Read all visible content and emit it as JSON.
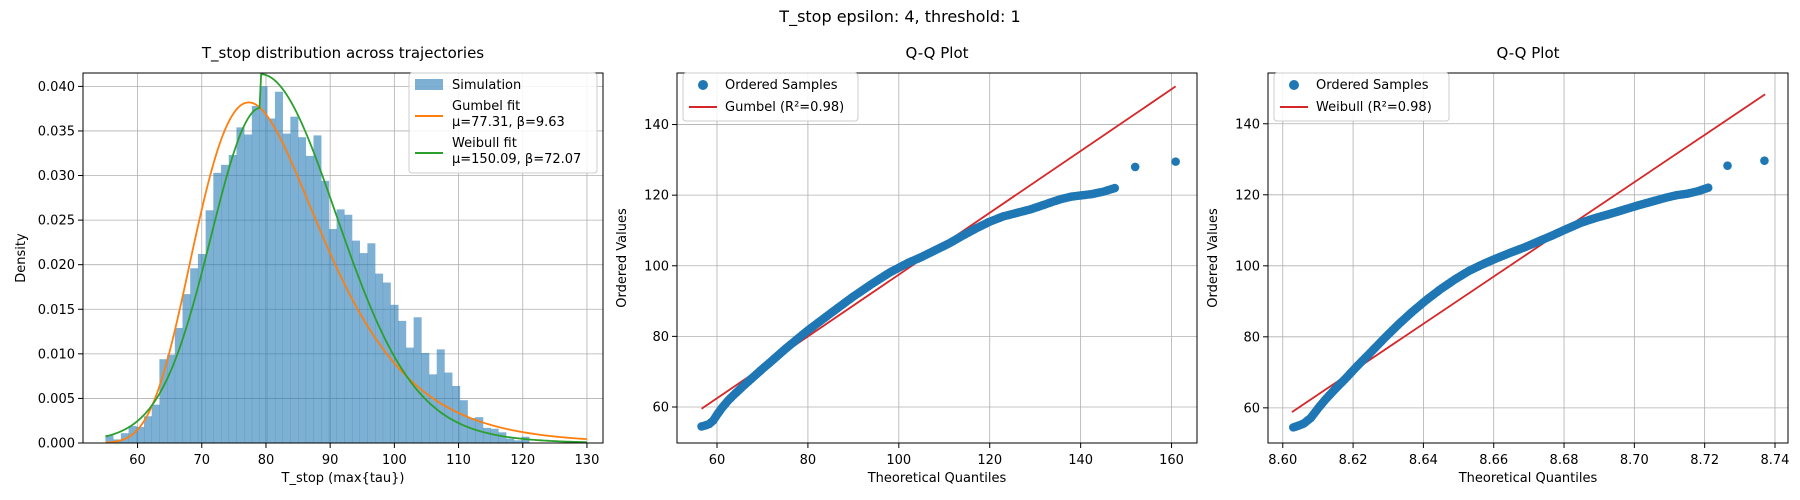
{
  "figure": {
    "suptitle": "T_stop epsilon: 4, threshold: 1",
    "colors": {
      "hist": "#1f77b4",
      "gumbel": "#ff7f0e",
      "weibull": "#2ca02c",
      "points": "#1f77b4",
      "fitline": "#d62728",
      "grid": "#b0b0b0"
    }
  },
  "chart_data": [
    {
      "type": "bar",
      "title": "T_stop distribution across trajectories",
      "xlabel": "T_stop (max{tau})",
      "ylabel": "Density",
      "xlim": [
        51.5,
        132.5
      ],
      "ylim": [
        0,
        0.0415
      ],
      "xticks": [
        60,
        70,
        80,
        90,
        100,
        110,
        120,
        130
      ],
      "yticks": [
        0.0,
        0.005,
        0.01,
        0.015,
        0.02,
        0.025,
        0.03,
        0.035,
        0.04
      ],
      "ytick_labels": [
        "0.000",
        "0.005",
        "0.010",
        "0.015",
        "0.020",
        "0.025",
        "0.030",
        "0.035",
        "0.040"
      ],
      "grid": true,
      "legend_position": "top-right",
      "histogram": {
        "name": "Simulation",
        "bin_start": 55,
        "bin_width": 1.2,
        "densities": [
          0.0009,
          0.0004,
          0.0011,
          0.0019,
          0.0018,
          0.003,
          0.0043,
          0.0094,
          0.0099,
          0.0129,
          0.0167,
          0.0196,
          0.0212,
          0.0261,
          0.0303,
          0.0312,
          0.0323,
          0.0354,
          0.0346,
          0.0378,
          0.04,
          0.0364,
          0.0394,
          0.0347,
          0.0366,
          0.0343,
          0.0322,
          0.0345,
          0.0294,
          0.024,
          0.0262,
          0.0256,
          0.0227,
          0.0213,
          0.0224,
          0.019,
          0.018,
          0.0155,
          0.0137,
          0.0107,
          0.0141,
          0.0101,
          0.0077,
          0.0105,
          0.0079,
          0.0064,
          0.0048,
          0.0028,
          0.0029,
          0.0017,
          0.0016,
          0.0012,
          0.0005,
          0.0003,
          0.0007
        ]
      },
      "series": [
        {
          "name": "Gumbel fit",
          "params_label": "μ=77.31, β=9.63",
          "model": "gumbel",
          "mu": 77.31,
          "beta": 9.63,
          "x_range": [
            55,
            130
          ]
        },
        {
          "name": "Weibull fit",
          "params_label": "μ=150.09, β=72.07",
          "model": "skewed",
          "peak": 79.2,
          "peak_density": 0.0376,
          "x_range": [
            55,
            130
          ]
        }
      ]
    },
    {
      "type": "scatter",
      "title": "Q-Q Plot",
      "xlabel": "Theoretical Quantiles",
      "ylabel": "Ordered Values",
      "xlim": [
        51.2,
        165.6
      ],
      "ylim": [
        49.8,
        154.6
      ],
      "xticks": [
        60,
        80,
        100,
        120,
        140,
        160
      ],
      "yticks": [
        60,
        80,
        100,
        120,
        140
      ],
      "grid": true,
      "legend_position": "top-left",
      "series": [
        {
          "name": "Ordered Samples",
          "points": [
            [
              56.6,
              54.5
            ],
            [
              57.5,
              54.8
            ],
            [
              58.3,
              55.2
            ],
            [
              59.2,
              56.2
            ],
            [
              60.0,
              57.8
            ],
            [
              61.0,
              59.6
            ],
            [
              62.5,
              61.9
            ],
            [
              64.0,
              63.8
            ],
            [
              66.0,
              66.2
            ],
            [
              68.0,
              68.5
            ],
            [
              70.0,
              70.8
            ],
            [
              72.0,
              73.0
            ],
            [
              75.0,
              76.4
            ],
            [
              78.0,
              79.6
            ],
            [
              80.0,
              81.7
            ],
            [
              83.0,
              84.6
            ],
            [
              86.0,
              87.5
            ],
            [
              90.0,
              91.3
            ],
            [
              94.0,
              94.8
            ],
            [
              98.0,
              98.1
            ],
            [
              102.0,
              100.8
            ],
            [
              105.0,
              102.5
            ],
            [
              108.0,
              104.4
            ],
            [
              111.0,
              106.3
            ],
            [
              114.0,
              108.5
            ],
            [
              117.0,
              110.6
            ],
            [
              120.0,
              112.5
            ],
            [
              123.0,
              114.0
            ],
            [
              126.0,
              115.0
            ],
            [
              129.0,
              116.0
            ],
            [
              132.0,
              117.3
            ],
            [
              134.0,
              118.2
            ],
            [
              136.0,
              119.0
            ],
            [
              138.0,
              119.6
            ],
            [
              140.5,
              120.0
            ],
            [
              142.5,
              120.3
            ],
            [
              145.0,
              121.0
            ],
            [
              147.5,
              122.0
            ],
            [
              152.0,
              128.0
            ],
            [
              160.9,
              129.5
            ]
          ]
        },
        {
          "name": "Gumbel (R²=0.98)",
          "model": "line",
          "x": [
            56.6,
            160.9
          ],
          "y": [
            59.5,
            150.8
          ]
        }
      ]
    },
    {
      "type": "scatter",
      "title": "Q-Q Plot",
      "xlabel": "Theoretical Quantiles",
      "ylabel": "Ordered Values",
      "xlim": [
        8.5958,
        8.7437
      ],
      "ylim": [
        50.1,
        154.3
      ],
      "xticks": [
        8.6,
        8.62,
        8.64,
        8.66,
        8.68,
        8.7,
        8.72,
        8.74
      ],
      "xtick_labels": [
        "8.60",
        "8.62",
        "8.64",
        "8.66",
        "8.68",
        "8.70",
        "8.72",
        "8.74"
      ],
      "yticks": [
        60,
        80,
        100,
        120,
        140
      ],
      "grid": true,
      "legend_position": "top-left",
      "series": [
        {
          "name": "Ordered Samples",
          "points": [
            [
              8.603,
              54.5
            ],
            [
              8.6045,
              55.0
            ],
            [
              8.606,
              55.6
            ],
            [
              8.608,
              57.2
            ],
            [
              8.61,
              59.8
            ],
            [
              8.612,
              62.2
            ],
            [
              8.615,
              65.4
            ],
            [
              8.618,
              68.4
            ],
            [
              8.621,
              71.6
            ],
            [
              8.625,
              75.6
            ],
            [
              8.629,
              79.7
            ],
            [
              8.633,
              83.6
            ],
            [
              8.637,
              87.2
            ],
            [
              8.641,
              90.5
            ],
            [
              8.645,
              93.5
            ],
            [
              8.649,
              96.2
            ],
            [
              8.653,
              98.6
            ],
            [
              8.657,
              100.5
            ],
            [
              8.661,
              102.2
            ],
            [
              8.665,
              103.8
            ],
            [
              8.669,
              105.3
            ],
            [
              8.673,
              107.0
            ],
            [
              8.677,
              108.7
            ],
            [
              8.681,
              110.5
            ],
            [
              8.685,
              112.2
            ],
            [
              8.689,
              113.5
            ],
            [
              8.693,
              114.6
            ],
            [
              8.697,
              115.8
            ],
            [
              8.701,
              117.0
            ],
            [
              8.705,
              118.1
            ],
            [
              8.709,
              119.2
            ],
            [
              8.712,
              119.9
            ],
            [
              8.715,
              120.3
            ],
            [
              8.718,
              121.0
            ],
            [
              8.721,
              122.0
            ],
            [
              8.7265,
              128.2
            ],
            [
              8.737,
              129.6
            ]
          ]
        },
        {
          "name": "Weibull (R²=0.98)",
          "model": "line",
          "x": [
            8.6026,
            8.7372
          ],
          "y": [
            58.8,
            148.3
          ]
        }
      ]
    }
  ]
}
